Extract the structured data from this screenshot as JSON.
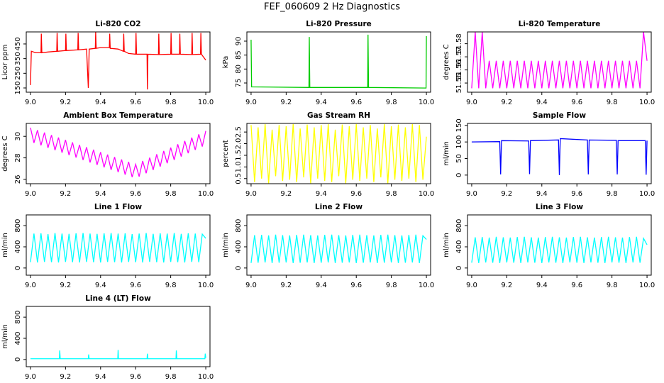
{
  "title": "FEF_060609  2 Hz Diagnostics",
  "chart_data": [
    {
      "type": "line",
      "title": "Li-820 CO2",
      "y_label": "Licor ppm",
      "x": [
        9,
        9.005,
        9.03,
        9.06,
        9.062,
        9.065,
        9.1,
        9.15,
        9.152,
        9.155,
        9.2,
        9.202,
        9.205,
        9.27,
        9.272,
        9.275,
        9.32,
        9.33,
        9.335,
        9.37,
        9.372,
        9.375,
        9.4,
        9.45,
        9.452,
        9.455,
        9.5,
        9.53,
        9.532,
        9.535,
        9.56,
        9.6,
        9.602,
        9.605,
        9.665,
        9.667,
        9.67,
        9.73,
        9.732,
        9.735,
        9.8,
        9.802,
        9.805,
        9.85,
        9.852,
        9.855,
        9.92,
        9.922,
        9.925,
        9.97,
        9.972,
        9.975,
        10
      ],
      "series": [
        {
          "color": "#ff0000",
          "values": [
            170,
            400,
            390,
            390,
            520,
            390,
            395,
            400,
            525,
            400,
            405,
            520,
            405,
            410,
            525,
            410,
            415,
            150,
            415,
            420,
            530,
            420,
            425,
            425,
            520,
            420,
            415,
            400,
            520,
            400,
            385,
            380,
            525,
            380,
            380,
            140,
            380,
            378,
            520,
            378,
            380,
            525,
            380,
            380,
            520,
            380,
            378,
            525,
            378,
            380,
            525,
            380,
            340
          ]
        }
      ],
      "xlim": [
        8.976,
        10.024
      ],
      "xticks": [
        {
          "value": 9,
          "label": "9.0"
        },
        9.2,
        9.4,
        9.6,
        9.8,
        {
          "value": 10,
          "label": "10.0"
        }
      ],
      "ylim": [
        121,
        532
      ],
      "yticks": [
        150,
        250,
        350,
        450
      ]
    },
    {
      "type": "line",
      "title": "Li-820 Pressure",
      "y_label": "kPa",
      "x": [
        9,
        9.003,
        9.33,
        9.332,
        9.335,
        9.665,
        9.667,
        9.67,
        9.998,
        10
      ],
      "series": [
        {
          "color": "#00cc00",
          "values": [
            90.5,
            73.6,
            73.4,
            91.5,
            73.4,
            73.4,
            92.3,
            73.4,
            73.2,
            91.8
          ]
        }
      ],
      "xlim": [
        8.976,
        10.024
      ],
      "xticks": [
        {
          "value": 9,
          "label": "9.0"
        },
        9.2,
        9.4,
        9.6,
        9.8,
        {
          "value": 10,
          "label": "10.0"
        }
      ],
      "ylim": [
        71.7,
        93.3
      ],
      "yticks": [
        75,
        80,
        85,
        90
      ]
    },
    {
      "type": "line",
      "title": "Li-820 Temperature",
      "y_label": "degrees C",
      "x": [
        9,
        9.02,
        9.04,
        9.06,
        9.08,
        9.1,
        9.12,
        9.14,
        9.16,
        9.18,
        9.2,
        9.22,
        9.24,
        9.26,
        9.28,
        9.3,
        9.32,
        9.34,
        9.36,
        9.38,
        9.4,
        9.42,
        9.44,
        9.46,
        9.48,
        9.5,
        9.52,
        9.54,
        9.56,
        9.58,
        9.6,
        9.62,
        9.64,
        9.66,
        9.68,
        9.7,
        9.72,
        9.74,
        9.76,
        9.78,
        9.8,
        9.82,
        9.84,
        9.86,
        9.88,
        9.9,
        9.92,
        9.94,
        9.96,
        9.98,
        10
      ],
      "series": [
        {
          "color": "#ff00ff",
          "values": [
            51.546,
            51.589,
            51.546,
            51.589,
            51.546,
            51.567,
            51.546,
            51.567,
            51.546,
            51.567,
            51.546,
            51.567,
            51.546,
            51.567,
            51.546,
            51.567,
            51.546,
            51.567,
            51.546,
            51.567,
            51.546,
            51.567,
            51.546,
            51.567,
            51.546,
            51.567,
            51.546,
            51.567,
            51.546,
            51.567,
            51.546,
            51.567,
            51.546,
            51.567,
            51.546,
            51.567,
            51.546,
            51.567,
            51.546,
            51.567,
            51.546,
            51.567,
            51.546,
            51.567,
            51.546,
            51.567,
            51.546,
            51.567,
            51.546,
            51.589,
            51.567
          ]
        }
      ],
      "xlim": [
        8.976,
        10.024
      ],
      "xticks": [
        {
          "value": 9,
          "label": "9.0"
        },
        9.2,
        9.4,
        9.6,
        9.8,
        {
          "value": 10,
          "label": "10.0"
        }
      ],
      "ylim": [
        51.543,
        51.589
      ],
      "yticks": [
        51.55,
        51.56,
        51.57,
        51.58
      ]
    },
    {
      "type": "line",
      "title": "Ambient Box Temperature",
      "y_label": "degrees C",
      "x": [
        9,
        9.02,
        9.04,
        9.06,
        9.08,
        9.1,
        9.12,
        9.14,
        9.16,
        9.18,
        9.2,
        9.22,
        9.24,
        9.26,
        9.28,
        9.3,
        9.32,
        9.34,
        9.36,
        9.38,
        9.4,
        9.42,
        9.44,
        9.46,
        9.48,
        9.5,
        9.52,
        9.54,
        9.56,
        9.58,
        9.6,
        9.62,
        9.64,
        9.66,
        9.68,
        9.7,
        9.72,
        9.74,
        9.76,
        9.78,
        9.8,
        9.82,
        9.84,
        9.86,
        9.88,
        9.9,
        9.92,
        9.94,
        9.96,
        9.98,
        10
      ],
      "series": [
        {
          "color": "#ff00ff",
          "values": [
            30.8,
            29.39,
            30.57,
            29.16,
            30.35,
            28.93,
            30.12,
            28.71,
            29.89,
            28.48,
            29.67,
            28.25,
            29.44,
            28.03,
            29.21,
            27.8,
            28.99,
            27.57,
            28.76,
            27.35,
            28.53,
            27.12,
            28.31,
            26.89,
            28.08,
            26.67,
            27.85,
            26.44,
            27.63,
            26.21,
            27.4,
            26.26,
            27.71,
            26.57,
            28.02,
            26.88,
            28.33,
            27.19,
            28.64,
            27.5,
            28.95,
            27.81,
            29.26,
            28.12,
            29.57,
            28.43,
            29.88,
            28.74,
            30.19,
            29.05,
            30.5
          ]
        }
      ],
      "xlim": [
        8.976,
        10.024
      ],
      "xticks": [
        {
          "value": 9,
          "label": "9.0"
        },
        9.2,
        9.4,
        9.6,
        9.8,
        {
          "value": 10,
          "label": "10.0"
        }
      ],
      "ylim": [
        25.6,
        31.2
      ],
      "yticks": [
        26,
        28,
        30
      ]
    },
    {
      "type": "line",
      "title": "Gas Stream RH",
      "y_label": "percent",
      "x": [
        9,
        9.02,
        9.04,
        9.06,
        9.08,
        9.1,
        9.12,
        9.14,
        9.16,
        9.18,
        9.2,
        9.22,
        9.24,
        9.26,
        9.28,
        9.3,
        9.32,
        9.34,
        9.36,
        9.38,
        9.4,
        9.42,
        9.44,
        9.46,
        9.48,
        9.5,
        9.52,
        9.54,
        9.56,
        9.58,
        9.6,
        9.62,
        9.64,
        9.66,
        9.68,
        9.7,
        9.72,
        9.74,
        9.76,
        9.78,
        9.8,
        9.82,
        9.84,
        9.86,
        9.88,
        9.9,
        9.92,
        9.94,
        9.96,
        9.98,
        10
      ],
      "series": [
        {
          "color": "#ffff00",
          "values": [
            2.8,
            0.35,
            2.7,
            0.5,
            2.84,
            0.3,
            2.6,
            0.6,
            2.8,
            0.4,
            2.75,
            0.45,
            2.84,
            0.35,
            2.65,
            0.55,
            2.82,
            0.3,
            2.7,
            0.5,
            2.8,
            0.4,
            2.84,
            0.35,
            2.6,
            0.6,
            2.82,
            0.3,
            2.75,
            0.45,
            2.84,
            0.4,
            2.7,
            0.5,
            2.8,
            0.35,
            2.65,
            0.55,
            2.84,
            0.3,
            2.75,
            0.45,
            2.82,
            0.4,
            2.7,
            0.5,
            2.84,
            0.35,
            2.8,
            0.45,
            2.3
          ]
        }
      ],
      "xlim": [
        8.976,
        10.024
      ],
      "xticks": [
        {
          "value": 9,
          "label": "9.0"
        },
        9.2,
        9.4,
        9.6,
        9.8,
        {
          "value": 10,
          "label": "10.0"
        }
      ],
      "ylim": [
        0.28,
        2.87
      ],
      "yticks": [
        0.5,
        {
          "value": 1,
          "label": "1.0"
        },
        1.5,
        {
          "value": 2,
          "label": "2.0"
        },
        2.5
      ]
    },
    {
      "type": "line",
      "title": "Sample Flow",
      "y_label": "ml/min",
      "x": [
        9,
        9.16,
        9.165,
        9.17,
        9.325,
        9.33,
        9.335,
        9.495,
        9.5,
        9.505,
        9.66,
        9.665,
        9.67,
        9.825,
        9.83,
        9.835,
        9.99,
        9.995,
        10
      ],
      "series": [
        {
          "color": "#0000ff",
          "values": [
            100,
            101,
            2,
            104,
            103,
            3,
            104,
            106,
            0,
            110,
            106,
            2,
            106,
            105,
            2,
            104,
            104,
            1,
            104
          ]
        }
      ],
      "xlim": [
        8.976,
        10.024
      ],
      "xticks": [
        {
          "value": 9,
          "label": "9.0"
        },
        9.2,
        9.4,
        9.6,
        9.8,
        {
          "value": 10,
          "label": "10.0"
        }
      ],
      "ylim": [
        -26,
        156
      ],
      "yticks": [
        0,
        50,
        100,
        150
      ]
    },
    {
      "type": "line",
      "title": "Line 1 Flow",
      "y_label": "ml/min",
      "x": [
        9,
        9.02,
        9.04,
        9.06,
        9.08,
        9.1,
        9.12,
        9.14,
        9.16,
        9.18,
        9.2,
        9.22,
        9.24,
        9.26,
        9.28,
        9.3,
        9.32,
        9.34,
        9.36,
        9.38,
        9.4,
        9.42,
        9.44,
        9.46,
        9.48,
        9.5,
        9.52,
        9.54,
        9.56,
        9.58,
        9.6,
        9.62,
        9.64,
        9.66,
        9.68,
        9.7,
        9.72,
        9.74,
        9.76,
        9.78,
        9.8,
        9.82,
        9.84,
        9.86,
        9.88,
        9.9,
        9.92,
        9.94,
        9.96,
        9.98,
        10
      ],
      "series": [
        {
          "color": "#00ffff",
          "values": [
            110,
            650,
            105,
            655,
            115,
            640,
            110,
            660,
            105,
            650,
            115,
            645,
            110,
            655,
            105,
            660,
            115,
            650,
            110,
            645,
            105,
            655,
            115,
            660,
            110,
            650,
            105,
            655,
            115,
            640,
            110,
            650,
            105,
            660,
            115,
            645,
            110,
            655,
            105,
            650,
            115,
            660,
            110,
            645,
            105,
            655,
            115,
            650,
            110,
            640,
            560
          ]
        }
      ],
      "xlim": [
        8.976,
        10.024
      ],
      "xticks": [
        {
          "value": 9,
          "label": "9.0"
        },
        9.2,
        9.4,
        9.6,
        9.8,
        {
          "value": 10,
          "label": "10.0"
        }
      ],
      "ylim": [
        -136,
        1003
      ],
      "yticks": [
        0,
        400,
        800
      ]
    },
    {
      "type": "line",
      "title": "Line 2 Flow",
      "y_label": "ml/min",
      "x": [
        9,
        9.02,
        9.04,
        9.06,
        9.08,
        9.1,
        9.12,
        9.14,
        9.16,
        9.18,
        9.2,
        9.22,
        9.24,
        9.26,
        9.28,
        9.3,
        9.32,
        9.34,
        9.36,
        9.38,
        9.4,
        9.42,
        9.44,
        9.46,
        9.48,
        9.5,
        9.52,
        9.54,
        9.56,
        9.58,
        9.6,
        9.62,
        9.64,
        9.66,
        9.68,
        9.7,
        9.72,
        9.74,
        9.76,
        9.78,
        9.8,
        9.82,
        9.84,
        9.86,
        9.88,
        9.9,
        9.92,
        9.94,
        9.96,
        9.98,
        10
      ],
      "series": [
        {
          "color": "#00ffff",
          "values": [
            95,
            620,
            100,
            625,
            105,
            615,
            95,
            630,
            100,
            620,
            105,
            615,
            95,
            625,
            100,
            630,
            105,
            620,
            95,
            615,
            100,
            625,
            105,
            630,
            95,
            620,
            100,
            615,
            105,
            625,
            95,
            630,
            100,
            620,
            105,
            615,
            95,
            625,
            100,
            630,
            105,
            620,
            95,
            615,
            100,
            625,
            105,
            630,
            95,
            610,
            540
          ]
        }
      ],
      "xlim": [
        8.976,
        10.024
      ],
      "xticks": [
        {
          "value": 9,
          "label": "9.0"
        },
        9.2,
        9.4,
        9.6,
        9.8,
        {
          "value": 10,
          "label": "10.0"
        }
      ],
      "ylim": [
        -136,
        1003
      ],
      "yticks": [
        0,
        400,
        800
      ]
    },
    {
      "type": "line",
      "title": "Line 3 Flow",
      "y_label": "ml/min",
      "x": [
        9,
        9.02,
        9.04,
        9.06,
        9.08,
        9.1,
        9.12,
        9.14,
        9.16,
        9.18,
        9.2,
        9.22,
        9.24,
        9.26,
        9.28,
        9.3,
        9.32,
        9.34,
        9.36,
        9.38,
        9.4,
        9.42,
        9.44,
        9.46,
        9.48,
        9.5,
        9.52,
        9.54,
        9.56,
        9.58,
        9.6,
        9.62,
        9.64,
        9.66,
        9.68,
        9.7,
        9.72,
        9.74,
        9.76,
        9.78,
        9.8,
        9.82,
        9.84,
        9.86,
        9.88,
        9.9,
        9.92,
        9.94,
        9.96,
        9.98,
        10
      ],
      "series": [
        {
          "color": "#00ffff",
          "values": [
            100,
            580,
            95,
            585,
            105,
            575,
            100,
            590,
            95,
            580,
            105,
            575,
            100,
            585,
            95,
            590,
            105,
            580,
            100,
            575,
            95,
            585,
            105,
            590,
            100,
            580,
            95,
            575,
            105,
            585,
            100,
            590,
            95,
            580,
            105,
            575,
            100,
            585,
            95,
            590,
            105,
            580,
            100,
            575,
            95,
            585,
            105,
            590,
            100,
            560,
            440
          ]
        }
      ],
      "xlim": [
        8.976,
        10.024
      ],
      "xticks": [
        {
          "value": 9,
          "label": "9.0"
        },
        9.2,
        9.4,
        9.6,
        9.8,
        {
          "value": 10,
          "label": "10.0"
        }
      ],
      "ylim": [
        -136,
        1003
      ],
      "yticks": [
        0,
        400,
        800
      ]
    },
    {
      "type": "line",
      "title": "Line 4 (LT) Flow",
      "y_label": "ml/min",
      "x": [
        9,
        9.165,
        9.167,
        9.17,
        9.33,
        9.332,
        9.335,
        9.498,
        9.5,
        9.502,
        9.665,
        9.667,
        9.67,
        9.83,
        9.832,
        9.835,
        9.995,
        9.997,
        10
      ],
      "series": [
        {
          "color": "#00ffff",
          "values": [
            15,
            15,
            170,
            15,
            15,
            95,
            15,
            15,
            180,
            15,
            15,
            110,
            15,
            15,
            170,
            15,
            15,
            110,
            30
          ]
        }
      ],
      "xlim": [
        8.976,
        10.024
      ],
      "xticks": [
        {
          "value": 9,
          "label": "9.0"
        },
        9.2,
        9.4,
        9.6,
        9.8,
        {
          "value": 10,
          "label": "10.0"
        }
      ],
      "ylim": [
        -136,
        1003
      ],
      "yticks": [
        0,
        400,
        800
      ]
    }
  ]
}
